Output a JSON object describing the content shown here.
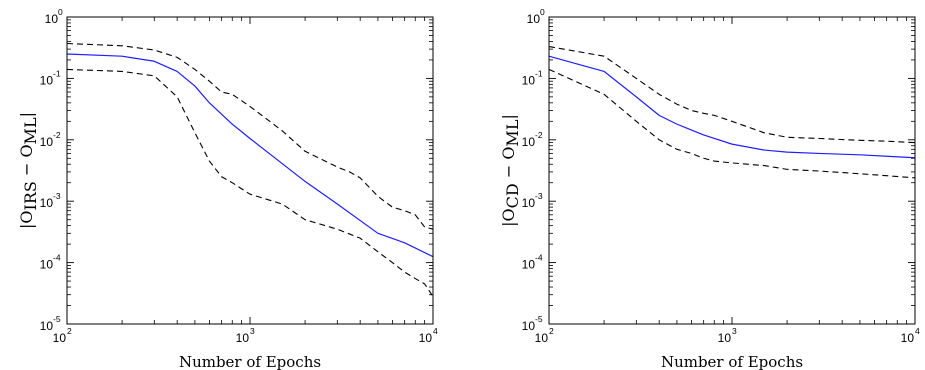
{
  "chart_data": [
    {
      "type": "line",
      "xscale": "log",
      "yscale": "log",
      "xlim": [
        100,
        10000
      ],
      "ylim": [
        1e-05,
        1
      ],
      "x_ticks": [
        {
          "base": "10",
          "exp": "2"
        },
        {
          "base": "10",
          "exp": "3"
        },
        {
          "base": "10",
          "exp": "4"
        }
      ],
      "y_ticks": [
        {
          "base": "10",
          "exp": "-5"
        },
        {
          "base": "10",
          "exp": "-4"
        },
        {
          "base": "10",
          "exp": "-3"
        },
        {
          "base": "10",
          "exp": "-2"
        },
        {
          "base": "10",
          "exp": "-1"
        },
        {
          "base": "10",
          "exp": "0"
        }
      ],
      "xlabel": "Number of Epochs",
      "ylabel": {
        "left": "|O",
        "sub1": "IRS",
        "mid": " − O",
        "sub2": "ML",
        "right": "|"
      },
      "grid": false,
      "series": [
        {
          "color": "#1f1fff",
          "style": "solid",
          "x": [
            100,
            200,
            300,
            400,
            500,
            600,
            800,
            1000,
            2000,
            3000,
            5000,
            7000,
            10000
          ],
          "values": [
            0.25,
            0.23,
            0.19,
            0.13,
            0.075,
            0.04,
            0.018,
            0.0105,
            0.0021,
            0.0009,
            0.0003,
            0.00021,
            0.000125
          ]
        },
        {
          "color": "#000000",
          "style": "dashed",
          "x": [
            100,
            200,
            300,
            400,
            500,
            600,
            700,
            800,
            1000,
            1500,
            2000,
            3000,
            3500,
            4000,
            5000,
            6000,
            7000,
            8000,
            9000,
            10000
          ],
          "values": [
            0.37,
            0.34,
            0.29,
            0.22,
            0.14,
            0.09,
            0.06,
            0.055,
            0.035,
            0.014,
            0.0065,
            0.0036,
            0.003,
            0.0024,
            0.0012,
            0.0008,
            0.0007,
            0.0006,
            0.00038,
            0.00035
          ]
        },
        {
          "color": "#000000",
          "style": "dashed",
          "x": [
            100,
            200,
            300,
            400,
            500,
            600,
            700,
            800,
            1000,
            1500,
            2000,
            3000,
            4000,
            5000,
            6000,
            7000,
            8000,
            9000,
            10000
          ],
          "values": [
            0.14,
            0.13,
            0.11,
            0.05,
            0.013,
            0.0045,
            0.0025,
            0.002,
            0.0013,
            0.0009,
            0.0005,
            0.00035,
            0.00025,
            0.00015,
            0.0001,
            7e-05,
            5.5e-05,
            4.5e-05,
            2.8e-05
          ]
        }
      ]
    },
    {
      "type": "line",
      "xscale": "log",
      "yscale": "log",
      "xlim": [
        100,
        10000
      ],
      "ylim": [
        1e-05,
        1
      ],
      "x_ticks": [
        {
          "base": "10",
          "exp": "2"
        },
        {
          "base": "10",
          "exp": "3"
        },
        {
          "base": "10",
          "exp": "4"
        }
      ],
      "y_ticks": [
        {
          "base": "10",
          "exp": "-5"
        },
        {
          "base": "10",
          "exp": "-4"
        },
        {
          "base": "10",
          "exp": "-3"
        },
        {
          "base": "10",
          "exp": "-2"
        },
        {
          "base": "10",
          "exp": "-1"
        },
        {
          "base": "10",
          "exp": "0"
        }
      ],
      "xlabel": "Number of Epochs",
      "ylabel": {
        "left": "|O",
        "sub1": "CD",
        "mid": " − O",
        "sub2": "ML",
        "right": "|"
      },
      "grid": false,
      "series": [
        {
          "color": "#1f1fff",
          "style": "solid",
          "x": [
            100,
            200,
            300,
            400,
            500,
            700,
            1000,
            1500,
            2000,
            3000,
            5000,
            7000,
            10000
          ],
          "values": [
            0.23,
            0.13,
            0.05,
            0.025,
            0.018,
            0.012,
            0.0085,
            0.0068,
            0.0063,
            0.006,
            0.0057,
            0.0054,
            0.0051
          ]
        },
        {
          "color": "#000000",
          "style": "dashed",
          "x": [
            100,
            200,
            300,
            400,
            500,
            600,
            700,
            800,
            1000,
            1500,
            2000,
            3000,
            5000,
            7000,
            10000
          ],
          "values": [
            0.33,
            0.23,
            0.1,
            0.055,
            0.038,
            0.03,
            0.027,
            0.025,
            0.02,
            0.013,
            0.011,
            0.0105,
            0.0098,
            0.0095,
            0.009
          ]
        },
        {
          "color": "#000000",
          "style": "dashed",
          "x": [
            100,
            200,
            300,
            400,
            500,
            600,
            700,
            800,
            1000,
            1500,
            2000,
            3000,
            5000,
            7000,
            10000
          ],
          "values": [
            0.14,
            0.055,
            0.02,
            0.01,
            0.007,
            0.006,
            0.005,
            0.0045,
            0.0042,
            0.0038,
            0.0033,
            0.0031,
            0.0028,
            0.0026,
            0.0024
          ]
        }
      ]
    }
  ]
}
